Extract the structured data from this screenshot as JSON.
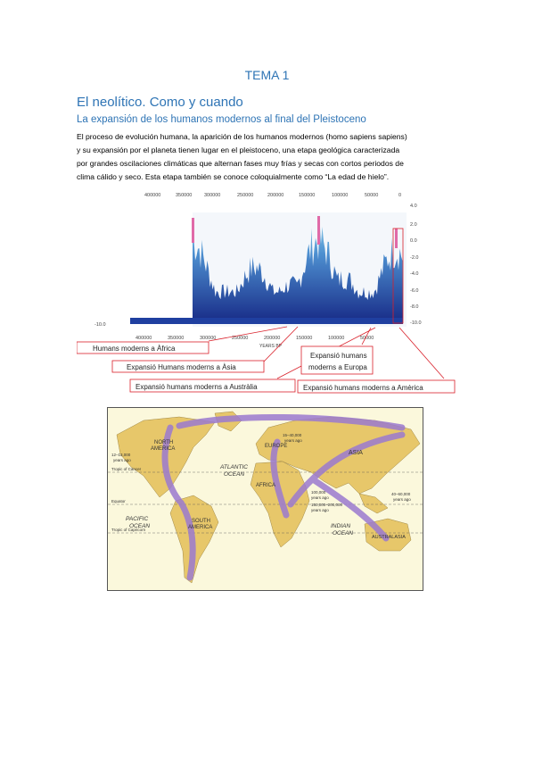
{
  "document": {
    "title": "TEMA 1",
    "heading": "El neolítico. Como y cuando",
    "subheading": "La expansión de los humanos modernos al final del Pleistoceno",
    "paragraph_lines": [
      "El proceso de evolución humana, la aparición de los humanos modernos (homo sapiens sapiens)",
      "y su expansión por el planeta tienen lugar en el pleistoceno, una etapa geológica caracterizada",
      "por grandes oscilaciones climáticas que alternan fases muy frías y secas con cortos periodos de",
      "clima cálido y seco. Esta etapa también se conoce coloquialmente como “La edad de hielo”."
    ]
  },
  "chart_data": {
    "type": "area",
    "x_ticks_top": [
      "400000",
      "350000",
      "300000",
      "250000",
      "200000",
      "150000",
      "100000",
      "50000",
      "0"
    ],
    "x_ticks_bottom": [
      "400000",
      "350000",
      "300000",
      "250000",
      "200000",
      "150000",
      "100000",
      "50000"
    ],
    "xlabel": "YEARS BP",
    "y_ticks": [
      "4.0",
      "2.0",
      "0.0",
      "-2.0",
      "-4.0",
      "-6.0",
      "-8.0",
      "-10.0"
    ],
    "y_left_label": "-10.0",
    "annotations": [
      "Humans moderns a Àfrica",
      "Expansió Humans moderns a Àsia",
      "Expansió humans moderns a Austràlia",
      "Expansió humans",
      "moderns a Europa",
      "Expansió humans moderns a Amèrica"
    ],
    "colors": {
      "series": "#1f4fa0",
      "peak": "#e06aa8",
      "annotation": "#d9202a"
    }
  },
  "map": {
    "labels": {
      "north_america": "NORTH",
      "north_america2": "AMERICA",
      "europe": "EUROPE",
      "asia": "ASIA",
      "africa": "AFRICA",
      "south_america": "SOUTH",
      "south_america2": "AMERICA",
      "australasia": "AUSTRALASIA",
      "atlantic": "ATLANTIC",
      "atlantic2": "OCEAN",
      "pacific": "PACIFIC",
      "pacific2": "OCEAN",
      "indian": "INDIAN",
      "indian2": "OCEAN",
      "tropic_cancer": "Tropic of Cancer",
      "equator": "Equator",
      "tropic_capricorn": "Tropic of Capricorn",
      "t1": "12–13,000",
      "t1b": "years ago",
      "t2": "15–40,000",
      "t2b": "years ago",
      "t3": "100,000",
      "t3b": "years ago",
      "t4": "150,000–200,000",
      "t4b": "years ago",
      "t5": "40–60,000",
      "t5b": "years ago"
    },
    "colors": {
      "land": "#e7c76a",
      "sea": "#fbf8dc",
      "arrow": "#9b7ad0"
    }
  }
}
